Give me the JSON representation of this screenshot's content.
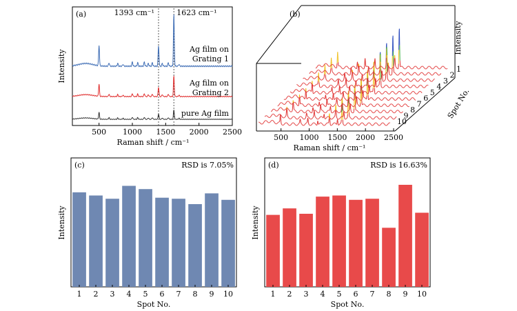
{
  "chart_data": [
    {
      "panel": "(a)",
      "type": "line",
      "title": "",
      "xlabel": "Raman shift / cm⁻¹",
      "ylabel": "Intensity",
      "xlim": [
        100,
        2500
      ],
      "xticks": [
        500,
        1000,
        1500,
        2000,
        2500
      ],
      "xtick_labels": [
        "500",
        "1000",
        "1500",
        "2000",
        "2500"
      ],
      "peaks": [
        {
          "x": 1393,
          "label": "1393 cm⁻¹"
        },
        {
          "x": 1623,
          "label": "1623 cm⁻¹"
        }
      ],
      "series": [
        {
          "name": "Ag film on Grating 1",
          "name_lines": [
            "Ag film on",
            "Grating 1"
          ],
          "color": "#3e6db5",
          "peak_heights": {
            "500": 30,
            "1393": 30,
            "1623": 75
          }
        },
        {
          "name": "Ag film on Grating 2",
          "name_lines": [
            "Ag film on",
            "Grating 2"
          ],
          "color": "#e03030",
          "peak_heights": {
            "500": 18,
            "1393": 14,
            "1623": 30
          }
        },
        {
          "name": "pure Ag film",
          "name_lines": [
            "pure Ag film"
          ],
          "color": "#333333",
          "peak_heights": {
            "500": 10,
            "1393": 8,
            "1623": 14
          }
        }
      ]
    },
    {
      "panel": "(b)",
      "type": "line",
      "title": "",
      "xlabel": "Raman shift / cm⁻¹",
      "ylabel": "Spot No.",
      "zlabel": "Intensity",
      "xlim": [
        100,
        2500
      ],
      "xticks": [
        500,
        1000,
        1500,
        2000,
        2500
      ],
      "xtick_labels": [
        "500",
        "1000",
        "1500",
        "2000",
        "2500"
      ],
      "spots": [
        "1",
        "2",
        "3",
        "4",
        "5",
        "6",
        "7",
        "8",
        "9",
        "10"
      ],
      "colormap": [
        "#e03030",
        "#f0c020",
        "#40b040",
        "#3050c0"
      ]
    },
    {
      "panel": "(c)",
      "type": "bar",
      "title": "",
      "annotation": "RSD is 7.05%",
      "xlabel": "Spot No.",
      "ylabel": "Intensity",
      "categories": [
        "1",
        "2",
        "3",
        "4",
        "5",
        "6",
        "7",
        "8",
        "9",
        "10"
      ],
      "values": [
        0.88,
        0.85,
        0.82,
        0.94,
        0.91,
        0.83,
        0.82,
        0.77,
        0.87,
        0.81
      ],
      "ylim": [
        0,
        1.2
      ],
      "color": "#6f88b2"
    },
    {
      "panel": "(d)",
      "type": "bar",
      "title": "",
      "annotation": "RSD is 16.63%",
      "xlabel": "Spot No.",
      "ylabel": "Intensity",
      "categories": [
        "1",
        "2",
        "3",
        "4",
        "5",
        "6",
        "7",
        "8",
        "9",
        "10"
      ],
      "values": [
        0.67,
        0.73,
        0.68,
        0.84,
        0.85,
        0.81,
        0.82,
        0.55,
        0.95,
        0.69
      ],
      "ylim": [
        0,
        1.2
      ],
      "color": "#e84a4a"
    }
  ]
}
